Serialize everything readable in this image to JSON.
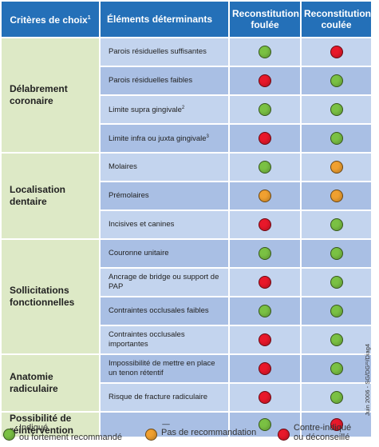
{
  "colors": {
    "header_bg": "#2470b8",
    "category_bg": "#dde9c6",
    "row_light": "#c3d4ee",
    "row_dark": "#a9bfe4",
    "green": "#7ac143",
    "orange": "#f0a030",
    "red": "#e8182a"
  },
  "header": {
    "criteria": "Critères de choix",
    "criteria_note": "1",
    "elements": "Éléments déterminants",
    "foulee": "Reconstitution foulée",
    "coulee": "Reconstitution coulée"
  },
  "categories": [
    {
      "label": "Délabrement coronaire",
      "rows": [
        {
          "element": "Parois résiduelles suffisantes",
          "note": "",
          "foulee": "green",
          "coulee": "red"
        },
        {
          "element": "Parois résiduelles faibles",
          "note": "",
          "foulee": "red",
          "coulee": "green"
        },
        {
          "element": "Limite supra gingivale",
          "note": "2",
          "foulee": "green",
          "coulee": "green"
        },
        {
          "element": "Limite infra ou juxta gingivale",
          "note": "3",
          "foulee": "red",
          "coulee": "green"
        }
      ]
    },
    {
      "label": "Localisation dentaire",
      "rows": [
        {
          "element": "Molaires",
          "note": "",
          "foulee": "green",
          "coulee": "orange"
        },
        {
          "element": "Prémolaires",
          "note": "",
          "foulee": "orange",
          "coulee": "orange"
        },
        {
          "element": "Incisives et canines",
          "note": "",
          "foulee": "red",
          "coulee": "green"
        }
      ]
    },
    {
      "label": "Sollicitations fonctionnelles",
      "rows": [
        {
          "element": "Couronne unitaire",
          "note": "",
          "foulee": "green",
          "coulee": "green"
        },
        {
          "element": "Ancrage de bridge ou support de PAP",
          "note": "",
          "foulee": "red",
          "coulee": "green"
        },
        {
          "element": "Contraintes occlusales faibles",
          "note": "",
          "foulee": "green",
          "coulee": "green"
        },
        {
          "element": "Contraintes occlusales importantes",
          "note": "",
          "foulee": "red",
          "coulee": "green"
        }
      ]
    },
    {
      "label": "Anatomie radiculaire",
      "rows": [
        {
          "element": "Impossibilité de mettre en place un tenon rétentif",
          "note": "",
          "foulee": "red",
          "coulee": "green"
        },
        {
          "element": "Risque de fracture radiculaire",
          "note": "",
          "foulee": "red",
          "coulee": "green"
        }
      ]
    },
    {
      "label": "Possibilité de réintervention",
      "rows": [
        {
          "element": "—",
          "note": "",
          "foulee": "green",
          "coulee": "red"
        }
      ]
    }
  ],
  "side_credit": "Juin 2006 - SG/DG²¹/Diag4",
  "legend": [
    {
      "color": "green",
      "text": "Indiqué\nou fortement recommandé"
    },
    {
      "color": "orange",
      "text": "Pas de recommandation"
    },
    {
      "color": "red",
      "text": "Contre-indiqué\nou déconseillé"
    }
  ]
}
